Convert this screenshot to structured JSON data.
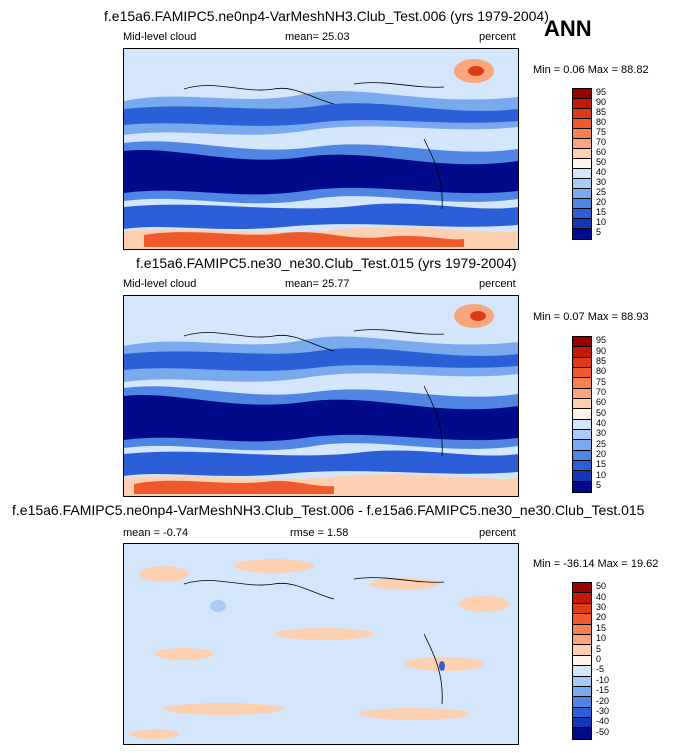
{
  "season": "ANN",
  "panels": [
    {
      "title": "f.e15a6.FAMIPC5.ne0np4-VarMeshNH3.Club_Test.006 (yrs 1979-2004)",
      "left_label": "Mid-level cloud",
      "center_label": "mean=  25.03",
      "right_label": "percent",
      "minmax": "Min =  0.06 Max =  88.82",
      "levels": [
        "95",
        "90",
        "85",
        "80",
        "75",
        "70",
        "60",
        "50",
        "40",
        "30",
        "25",
        "20",
        "15",
        "10",
        "5"
      ],
      "colors": [
        "#990000",
        "#c21a05",
        "#dd3a16",
        "#ee5a2e",
        "#f68050",
        "#fba57c",
        "#fdd0b2",
        "#fff4ea",
        "#d4e6fb",
        "#a9cbf5",
        "#7aaaee",
        "#4f86e4",
        "#2c5fd7",
        "#1437b8",
        "#000a8a"
      ]
    },
    {
      "title": "f.e15a6.FAMIPC5.ne30_ne30.Club_Test.015 (yrs 1979-2004)",
      "left_label": "Mid-level cloud",
      "center_label": "mean=  25.77",
      "right_label": "percent",
      "minmax": "Min =  0.07 Max =  88.93",
      "levels": [
        "95",
        "90",
        "85",
        "80",
        "75",
        "70",
        "60",
        "50",
        "40",
        "30",
        "25",
        "20",
        "15",
        "10",
        "5"
      ],
      "colors": [
        "#990000",
        "#c21a05",
        "#dd3a16",
        "#ee5a2e",
        "#f68050",
        "#fba57c",
        "#fdd0b2",
        "#fff4ea",
        "#d4e6fb",
        "#a9cbf5",
        "#7aaaee",
        "#4f86e4",
        "#2c5fd7",
        "#1437b8",
        "#000a8a"
      ]
    },
    {
      "title": "f.e15a6.FAMIPC5.ne0np4-VarMeshNH3.Club_Test.006 - f.e15a6.FAMIPC5.ne30_ne30.Club_Test.015",
      "left_label": "mean =  -0.74",
      "center_label": "rmse =   1.58",
      "right_label": "percent",
      "minmax": "Min = -36.14 Max =  19.62",
      "levels": [
        "50",
        "40",
        "30",
        "20",
        "15",
        "10",
        "5",
        "0",
        "-5",
        "-10",
        "-15",
        "-20",
        "-30",
        "-40",
        "-50"
      ],
      "colors": [
        "#990000",
        "#c21a05",
        "#dd3a16",
        "#ee5a2e",
        "#f68050",
        "#fba57c",
        "#fdd0b2",
        "#fff4ea",
        "#d4e6fb",
        "#a9cbf5",
        "#7aaaee",
        "#4f86e4",
        "#2c5fd7",
        "#1437b8",
        "#000a8a"
      ]
    }
  ]
}
